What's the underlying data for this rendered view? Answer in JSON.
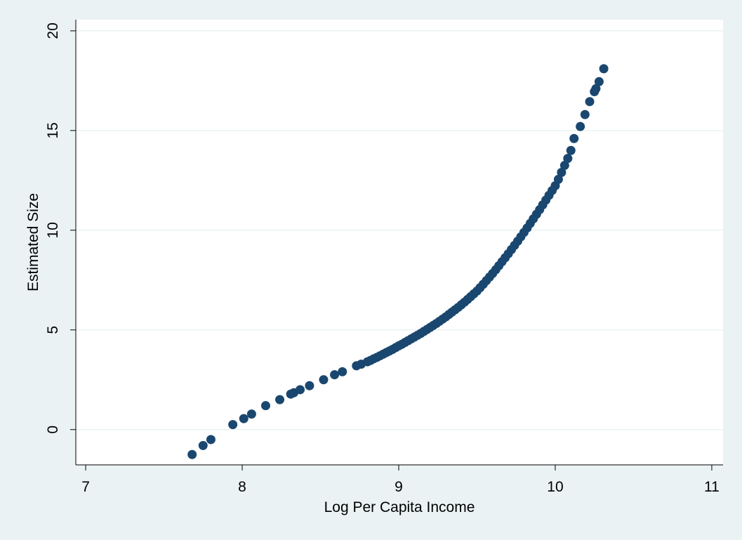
{
  "chart_data": {
    "type": "scatter",
    "x_label": "Log Per Capita Income",
    "y_label": "Estimated Size",
    "color": "#1a476f",
    "x": [
      7.68,
      7.75,
      7.8,
      7.94,
      8.01,
      8.06,
      8.15,
      8.24,
      8.31,
      8.33,
      8.37,
      8.43,
      8.52,
      8.59,
      8.64,
      8.73,
      8.76,
      8.8,
      8.82,
      8.84,
      8.86,
      8.88,
      8.9,
      8.92,
      8.94,
      8.96,
      8.98,
      9.0,
      9.02,
      9.04,
      9.06,
      9.08,
      9.1,
      9.12,
      9.14,
      9.16,
      9.18,
      9.2,
      9.22,
      9.24,
      9.26,
      9.28,
      9.3,
      9.32,
      9.34,
      9.36,
      9.38,
      9.4,
      9.42,
      9.44,
      9.46,
      9.48,
      9.5,
      9.52,
      9.54,
      9.56,
      9.58,
      9.6,
      9.62,
      9.64,
      9.66,
      9.68,
      9.7,
      9.72,
      9.74,
      9.76,
      9.78,
      9.8,
      9.82,
      9.84,
      9.86,
      9.88,
      9.9,
      9.92,
      9.94,
      9.96,
      9.98,
      10.0,
      10.02,
      10.04,
      10.06,
      10.08,
      10.1,
      10.12,
      10.16,
      10.19,
      10.22,
      10.25,
      10.26,
      10.28,
      10.31
    ],
    "values": [
      -1.25,
      -0.8,
      -0.5,
      0.25,
      0.55,
      0.78,
      1.2,
      1.5,
      1.78,
      1.85,
      2.0,
      2.2,
      2.5,
      2.75,
      2.9,
      3.2,
      3.28,
      3.4,
      3.47,
      3.55,
      3.62,
      3.7,
      3.78,
      3.86,
      3.94,
      4.02,
      4.11,
      4.2,
      4.28,
      4.37,
      4.46,
      4.55,
      4.64,
      4.73,
      4.82,
      4.92,
      5.02,
      5.12,
      5.22,
      5.32,
      5.43,
      5.54,
      5.65,
      5.77,
      5.89,
      6.01,
      6.13,
      6.26,
      6.39,
      6.53,
      6.67,
      6.81,
      6.95,
      7.12,
      7.29,
      7.47,
      7.65,
      7.83,
      8.02,
      8.22,
      8.42,
      8.62,
      8.82,
      9.03,
      9.24,
      9.45,
      9.67,
      9.89,
      10.11,
      10.34,
      10.57,
      10.8,
      11.03,
      11.27,
      11.51,
      11.75,
      11.99,
      12.23,
      12.55,
      12.9,
      13.25,
      13.6,
      14.0,
      14.6,
      15.2,
      15.8,
      16.45,
      16.95,
      17.1,
      17.45,
      18.1
    ],
    "xlim": [
      6.937,
      11.072
    ],
    "xticks": [
      7,
      8,
      9,
      10,
      11
    ],
    "ylim": [
      -1.77,
      20.56
    ],
    "yticks": [
      0,
      5,
      10,
      15,
      20
    ],
    "grid": true
  }
}
